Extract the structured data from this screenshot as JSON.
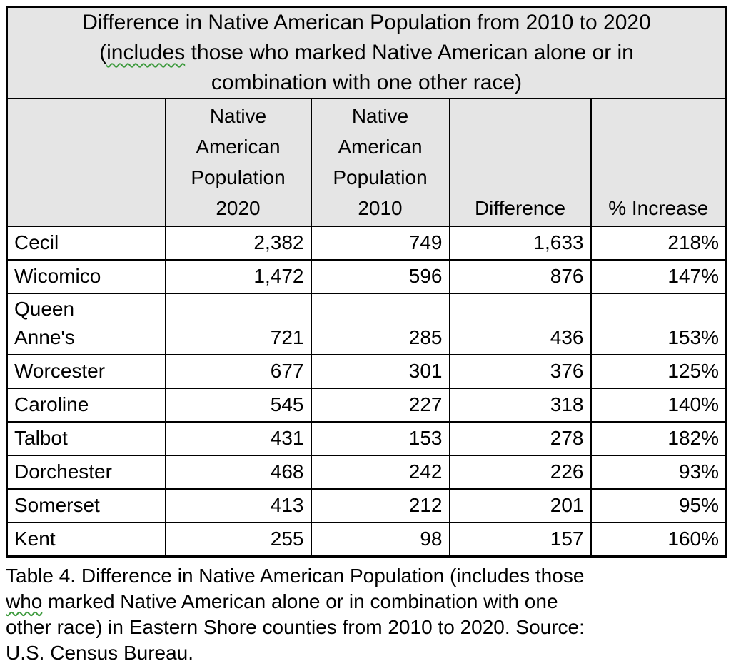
{
  "colors": {
    "header_bg": "#e5e5e5",
    "row_bg": "#ffffff",
    "border": "#000000",
    "text": "#000000",
    "squiggle": "#3f9b3f"
  },
  "table": {
    "title": {
      "line1": "Difference in Native American Population from 2010 to 2020",
      "line2_open": "(",
      "line2_flagged": "includes",
      "line2_rest": " those who marked Native American alone or in",
      "line3": "combination with one other race)"
    },
    "columns": [
      {
        "id": "county",
        "label": ""
      },
      {
        "id": "pop2020",
        "label": "Native\nAmerican\nPopulation\n2020"
      },
      {
        "id": "pop2010",
        "label": "Native\nAmerican\nPopulation\n2010"
      },
      {
        "id": "difference",
        "label": "Difference"
      },
      {
        "id": "pct_increase",
        "label": "% Increase"
      }
    ],
    "rows": [
      {
        "county": "Cecil",
        "pop2020": "2,382",
        "pop2010": "749",
        "difference": "1,633",
        "pct_increase": "218%"
      },
      {
        "county": "Wicomico",
        "pop2020": "1,472",
        "pop2010": "596",
        "difference": "876",
        "pct_increase": "147%"
      },
      {
        "county": "Queen\nAnne's",
        "pop2020": "721",
        "pop2010": "285",
        "difference": "436",
        "pct_increase": "153%"
      },
      {
        "county": "Worcester",
        "pop2020": "677",
        "pop2010": "301",
        "difference": "376",
        "pct_increase": "125%"
      },
      {
        "county": "Caroline",
        "pop2020": "545",
        "pop2010": "227",
        "difference": "318",
        "pct_increase": "140%"
      },
      {
        "county": "Talbot",
        "pop2020": "431",
        "pop2010": "153",
        "difference": "278",
        "pct_increase": "182%"
      },
      {
        "county": "Dorchester",
        "pop2020": "468",
        "pop2010": "242",
        "difference": "226",
        "pct_increase": "93%"
      },
      {
        "county": "Somerset",
        "pop2020": "413",
        "pop2010": "212",
        "difference": "201",
        "pct_increase": "95%"
      },
      {
        "county": "Kent",
        "pop2020": "255",
        "pop2010": "98",
        "difference": "157",
        "pct_increase": "160%"
      }
    ]
  },
  "caption": {
    "line1": "Table 4. Difference in Native American Population (includes those",
    "line2_flagged": "who",
    "line2_rest": " marked Native American alone or in combination with one",
    "line3": "other race) in Eastern Shore counties from 2010 to 2020. Source:",
    "line4": "U.S. Census Bureau."
  }
}
